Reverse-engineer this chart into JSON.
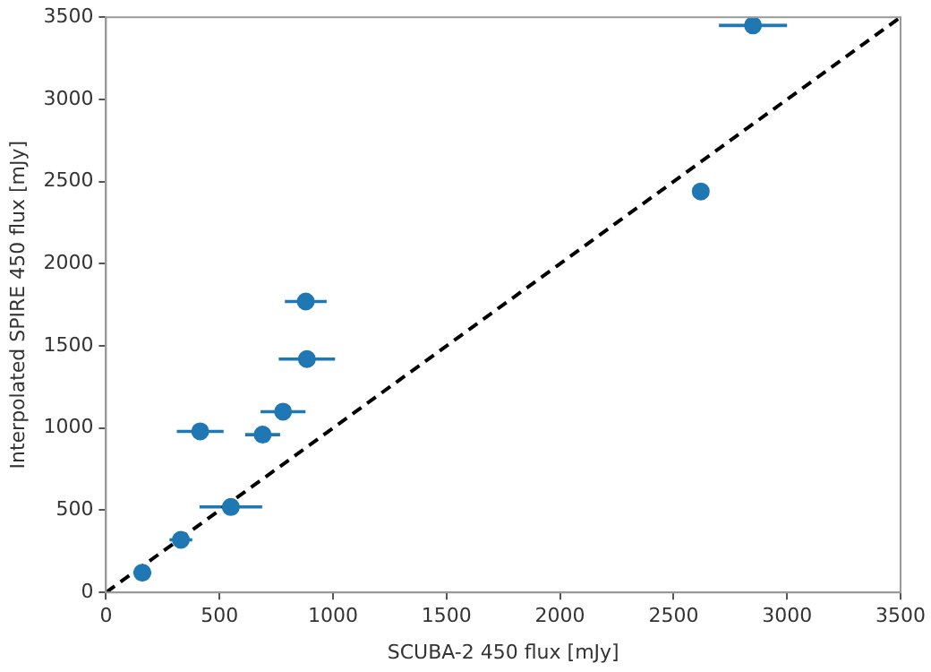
{
  "chart_data": {
    "type": "scatter",
    "xlabel": "SCUBA-2 450 flux [mJy]",
    "ylabel": "Interpolated SPIRE 450 flux [mJy]",
    "xlim": [
      0,
      3500
    ],
    "ylim": [
      0,
      3500
    ],
    "xticks": [
      0,
      500,
      1000,
      1500,
      2000,
      2500,
      3000,
      3500
    ],
    "yticks": [
      0,
      500,
      1000,
      1500,
      2000,
      2500,
      3000,
      3500
    ],
    "grid": false,
    "legend": false,
    "marker": "circle",
    "series": [
      {
        "type": "scatter",
        "color": "#1f77b4",
        "x": [
          160,
          330,
          550,
          415,
          690,
          780,
          885,
          880,
          2620,
          2850
        ],
        "values": [
          120,
          320,
          520,
          980,
          960,
          1100,
          1420,
          1770,
          2440,
          3450
        ],
        "xerrors": [
          40,
          50,
          138,
          103,
          77,
          99,
          124,
          92,
          30,
          150
        ]
      },
      {
        "type": "line",
        "color": "#000000",
        "line_style": "dashed",
        "marker": "none",
        "x": [
          0,
          3500
        ],
        "values": [
          0,
          3500
        ]
      }
    ]
  }
}
